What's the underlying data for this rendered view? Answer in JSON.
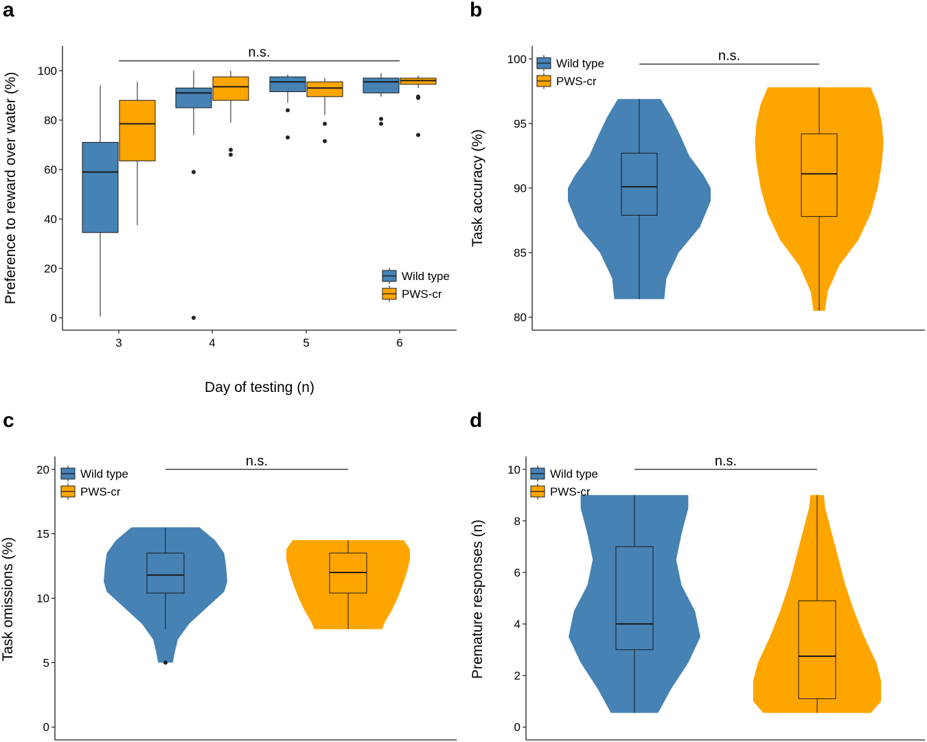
{
  "colors": {
    "wild_type": "#4682b4",
    "pws_cr": "#ffa500",
    "ink": "#1a1a1a"
  },
  "chart_data": [
    {
      "panel": "a",
      "type": "box",
      "ylabel": "Preference to reward over water (%)",
      "xlabel": "Day of testing (n)",
      "categories": [
        "3",
        "4",
        "5",
        "6"
      ],
      "ylim": [
        -5,
        110
      ],
      "yticks": [
        0,
        20,
        40,
        60,
        80,
        100
      ],
      "significance": {
        "label": "n.s.",
        "from": "3",
        "to": "6",
        "y": 104
      },
      "legend": {
        "position": "bottom-right",
        "labels": [
          "Wild type",
          "PWS-cr"
        ]
      },
      "series": [
        {
          "name": "Wild type",
          "boxes": [
            {
              "min": 0.5,
              "q1": 34.5,
              "median": 59,
              "q3": 71,
              "max": 94,
              "outliers": []
            },
            {
              "min": 74,
              "q1": 85,
              "median": 91,
              "q3": 93,
              "max": 100,
              "outliers": [
                59,
                0
              ]
            },
            {
              "min": 87,
              "q1": 91.5,
              "median": 95.5,
              "q3": 97.5,
              "max": 98.5,
              "outliers": [
                84,
                73
              ]
            },
            {
              "min": 89.5,
              "q1": 91,
              "median": 95.5,
              "q3": 97,
              "max": 99,
              "outliers": [
                80.5,
                78.5
              ]
            }
          ]
        },
        {
          "name": "PWS-cr",
          "boxes": [
            {
              "min": 37.5,
              "q1": 63.5,
              "median": 78.5,
              "q3": 88,
              "max": 95.5,
              "outliers": []
            },
            {
              "min": 79,
              "q1": 88,
              "median": 93.5,
              "q3": 97.5,
              "max": 100,
              "outliers": [
                68,
                66
              ]
            },
            {
              "min": 82,
              "q1": 89.5,
              "median": 93,
              "q3": 95.5,
              "max": 97,
              "outliers": [
                78.5,
                71.5
              ]
            },
            {
              "min": 93,
              "q1": 94.5,
              "median": 96,
              "q3": 97,
              "max": 98,
              "outliers": [
                89.5,
                89,
                74
              ]
            }
          ]
        }
      ]
    },
    {
      "panel": "b",
      "type": "violin",
      "ylabel": "Task accuracy (%)",
      "xlabel": "",
      "ylim": [
        79,
        101
      ],
      "yticks": [
        80,
        85,
        90,
        95,
        100
      ],
      "significance": {
        "label": "n.s.",
        "y": 99.6
      },
      "legend": {
        "position": "top-left",
        "labels": [
          "Wild type",
          "PWS-cr"
        ]
      },
      "series": [
        {
          "name": "Wild type",
          "box": {
            "min": 81.4,
            "q1": 87.9,
            "median": 90.1,
            "q3": 92.7,
            "max": 96.9,
            "outliers": []
          },
          "density": [
            [
              81.4,
              0.35
            ],
            [
              83,
              0.38
            ],
            [
              85,
              0.55
            ],
            [
              87,
              0.85
            ],
            [
              89,
              1.0
            ],
            [
              90,
              1.0
            ],
            [
              91,
              0.9
            ],
            [
              92.5,
              0.7
            ],
            [
              94,
              0.58
            ],
            [
              95.5,
              0.45
            ],
            [
              96.9,
              0.3
            ]
          ]
        },
        {
          "name": "PWS-cr",
          "box": {
            "min": 80.5,
            "q1": 87.8,
            "median": 91.1,
            "q3": 94.2,
            "max": 97.8,
            "outliers": []
          },
          "density": [
            [
              80.5,
              0.08
            ],
            [
              82,
              0.12
            ],
            [
              84,
              0.28
            ],
            [
              86,
              0.55
            ],
            [
              88,
              0.72
            ],
            [
              90,
              0.82
            ],
            [
              92,
              0.88
            ],
            [
              93.5,
              0.9
            ],
            [
              95,
              0.88
            ],
            [
              96.5,
              0.82
            ],
            [
              97.8,
              0.72
            ]
          ]
        }
      ]
    },
    {
      "panel": "c",
      "type": "violin",
      "ylabel": "Task omissions (%)",
      "xlabel": "",
      "ylim": [
        -1,
        21
      ],
      "yticks": [
        0,
        5,
        10,
        15,
        20
      ],
      "significance": {
        "label": "n.s.",
        "y": 20
      },
      "legend": {
        "position": "top-left",
        "labels": [
          "Wild type",
          "PWS-cr"
        ]
      },
      "series": [
        {
          "name": "Wild type",
          "box": {
            "min": 7.6,
            "q1": 10.4,
            "median": 11.8,
            "q3": 13.5,
            "max": 15.5,
            "outliers": [
              5
            ]
          },
          "density": [
            [
              5.0,
              0.12
            ],
            [
              5.8,
              0.15
            ],
            [
              6.8,
              0.2
            ],
            [
              8.0,
              0.38
            ],
            [
              9.5,
              0.72
            ],
            [
              10.5,
              0.95
            ],
            [
              11.3,
              1.0
            ],
            [
              12.5,
              0.98
            ],
            [
              13.5,
              0.95
            ],
            [
              14.5,
              0.8
            ],
            [
              15.5,
              0.55
            ]
          ]
        },
        {
          "name": "PWS-cr",
          "box": {
            "min": 7.6,
            "q1": 10.4,
            "median": 12.0,
            "q3": 13.5,
            "max": 14.5,
            "outliers": []
          },
          "density": [
            [
              7.6,
              0.55
            ],
            [
              8.2,
              0.6
            ],
            [
              9.0,
              0.7
            ],
            [
              10.0,
              0.8
            ],
            [
              11.0,
              0.88
            ],
            [
              12.0,
              0.95
            ],
            [
              13.0,
              1.0
            ],
            [
              13.8,
              1.0
            ],
            [
              14.5,
              0.9
            ]
          ]
        }
      ]
    },
    {
      "panel": "d",
      "type": "violin",
      "ylabel": "Premature responses (n)",
      "xlabel": "",
      "ylim": [
        -0.5,
        10.5
      ],
      "yticks": [
        0,
        2,
        4,
        6,
        8,
        10
      ],
      "significance": {
        "label": "n.s.",
        "y": 10
      },
      "legend": {
        "position": "top-left",
        "labels": [
          "Wild type",
          "PWS-cr"
        ]
      },
      "series": [
        {
          "name": "Wild type",
          "box": {
            "min": 0.55,
            "q1": 3.0,
            "median": 4.0,
            "q3": 7.0,
            "max": 9.0,
            "outliers": []
          },
          "density": [
            [
              0.55,
              0.35
            ],
            [
              1.5,
              0.55
            ],
            [
              2.5,
              0.8
            ],
            [
              3.5,
              0.98
            ],
            [
              4.5,
              0.9
            ],
            [
              5.5,
              0.7
            ],
            [
              6.5,
              0.62
            ],
            [
              7.5,
              0.7
            ],
            [
              8.5,
              0.8
            ],
            [
              9.0,
              0.8
            ]
          ]
        },
        {
          "name": "PWS-cr",
          "box": {
            "min": 0.55,
            "q1": 1.1,
            "median": 2.75,
            "q3": 4.9,
            "max": 9.0,
            "outliers": []
          },
          "density": [
            [
              0.55,
              0.8
            ],
            [
              1.0,
              0.95
            ],
            [
              1.8,
              0.95
            ],
            [
              2.5,
              0.88
            ],
            [
              3.5,
              0.7
            ],
            [
              4.5,
              0.55
            ],
            [
              5.5,
              0.42
            ],
            [
              6.5,
              0.32
            ],
            [
              7.5,
              0.22
            ],
            [
              8.5,
              0.12
            ],
            [
              9.0,
              0.1
            ]
          ]
        }
      ]
    }
  ]
}
